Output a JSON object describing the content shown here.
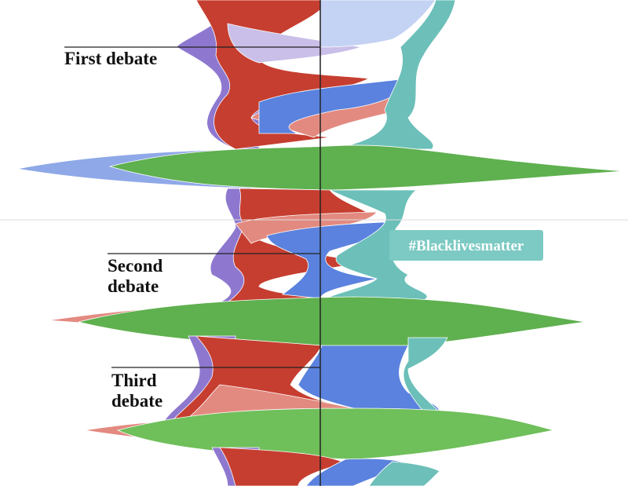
{
  "annotations": [
    {
      "lines": [
        "First debate"
      ]
    },
    {
      "lines": [
        "Second",
        "debate"
      ]
    },
    {
      "lines": [
        "Third",
        "debate"
      ]
    }
  ],
  "tooltip": "#Blacklivesmatter"
}
